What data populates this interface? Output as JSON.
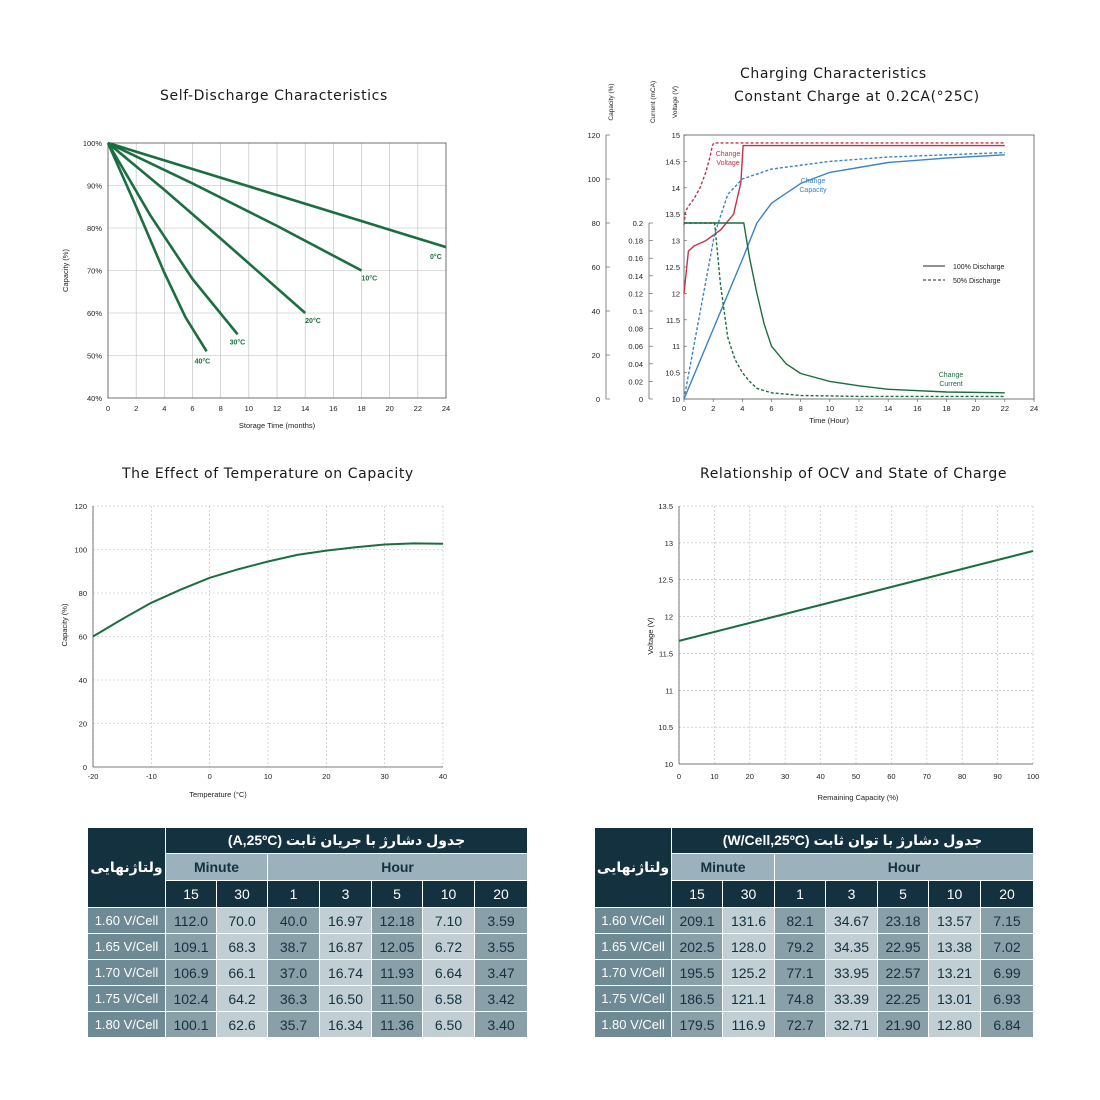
{
  "colors": {
    "green": "#1a6e3f",
    "red": "#c2334b",
    "blue": "#3a83c4",
    "navy": "#14313f",
    "grid": "#bbbbbb"
  },
  "chart_data": [
    {
      "type": "line",
      "title": "Self-Discharge Characteristics",
      "xlabel": "Storage Time (months)",
      "ylabel": "Capacity (%)",
      "xlim": [
        0,
        24
      ],
      "ylim": [
        40,
        100
      ],
      "x_ticks": [
        0,
        2,
        4,
        6,
        8,
        10,
        12,
        14,
        16,
        18,
        20,
        22,
        24
      ],
      "y_ticks": [
        "40%",
        "50%",
        "60%",
        "70%",
        "80%",
        "90%",
        "100%"
      ],
      "grid": true,
      "series": [
        {
          "name": "0°C",
          "x": [
            0,
            24
          ],
          "y": [
            100,
            75.5
          ]
        },
        {
          "name": "10°C",
          "x": [
            0,
            6,
            12,
            18
          ],
          "y": [
            100,
            90.5,
            80.5,
            70
          ]
        },
        {
          "name": "20°C",
          "x": [
            0,
            4,
            8,
            14
          ],
          "y": [
            100,
            89,
            77.5,
            60
          ]
        },
        {
          "name": "30°C",
          "x": [
            0,
            3,
            6,
            9.2
          ],
          "y": [
            100,
            83,
            68,
            55
          ]
        },
        {
          "name": "40°C",
          "x": [
            0,
            2,
            4,
            5.5,
            7
          ],
          "y": [
            100,
            85,
            69.5,
            59,
            51
          ]
        }
      ]
    },
    {
      "type": "line",
      "title": "Charging Characteristics",
      "subtitle": "Constant Charge at 0.2CA(°25C)",
      "xlabel": "Time (Hour)",
      "axis_labels": [
        "Capacity (%)",
        "Current (mCA)",
        "Voltage (V)"
      ],
      "xlim": [
        0,
        24
      ],
      "x_ticks": [
        0,
        2,
        4,
        6,
        8,
        10,
        12,
        14,
        16,
        18,
        20,
        22,
        24
      ],
      "capacity_ticks": [
        0,
        20,
        40,
        60,
        80,
        100,
        120
      ],
      "current_ticks": [
        0,
        0.02,
        0.04,
        0.06,
        0.08,
        0.1,
        0.12,
        0.14,
        0.16,
        0.18,
        0.2
      ],
      "voltage_ticks": [
        10,
        10.5,
        11,
        11.5,
        12,
        12.5,
        13,
        13.5,
        14,
        14.5,
        15
      ],
      "legend": [
        "100% Discharge",
        "50% Discharge"
      ],
      "legend_position": "right",
      "annotations": [
        "Change\nVoltage",
        "Change\nCapacity",
        "Change\nCurrent"
      ],
      "series": [
        {
          "x": [
            0,
            0.3,
            0.7,
            1.5,
            2.5,
            3.4,
            3.9,
            4.05,
            6,
            10,
            22
          ],
          "y": [
            12,
            12.8,
            12.9,
            13.0,
            13.2,
            13.5,
            14.1,
            14.8,
            14.8,
            14.8,
            14.8
          ],
          "unit": "V",
          "style": "solid",
          "color": "red"
        },
        {
          "x": [
            0,
            0.1,
            0.3,
            0.7,
            1.1,
            1.5,
            1.75,
            1.95,
            2.05,
            4,
            10,
            22
          ],
          "y": [
            13.3,
            13.55,
            13.65,
            13.8,
            14.0,
            14.3,
            14.55,
            14.8,
            14.85,
            14.85,
            14.85,
            14.85
          ],
          "unit": "V",
          "style": "dashed",
          "color": "red"
        },
        {
          "x": [
            0,
            4.1,
            5,
            6,
            8,
            10,
            14,
            18,
            22
          ],
          "y": [
            0,
            65,
            80,
            89,
            98,
            103,
            107.5,
            109.5,
            111
          ],
          "unit": "%",
          "style": "solid",
          "color": "blue"
        },
        {
          "x": [
            0,
            2.1,
            3,
            4,
            6,
            10,
            14,
            18,
            22
          ],
          "y": [
            0,
            75,
            93,
            100,
            104.5,
            108,
            110,
            111,
            112
          ],
          "unit": "%",
          "style": "dashed",
          "color": "blue"
        },
        {
          "x": [
            0,
            4.1,
            4.5,
            5,
            5.5,
            6,
            7,
            8,
            10,
            12,
            14,
            18,
            22
          ],
          "y": [
            0.2,
            0.2,
            0.16,
            0.12,
            0.085,
            0.06,
            0.04,
            0.029,
            0.02,
            0.015,
            0.011,
            0.008,
            0.007
          ],
          "unit": "CA",
          "style": "solid",
          "color": "green"
        },
        {
          "x": [
            0,
            2.1,
            2.5,
            3,
            3.5,
            4,
            4.5,
            5,
            6,
            8,
            12,
            16,
            22
          ],
          "y": [
            0.2,
            0.2,
            0.13,
            0.07,
            0.045,
            0.03,
            0.02,
            0.012,
            0.007,
            0.004,
            0.003,
            0.003,
            0.003
          ],
          "unit": "CA",
          "style": "dashed",
          "color": "green"
        }
      ]
    },
    {
      "type": "line",
      "title": "The Effect of Temperature on Capacity",
      "xlabel": "Temperature (°C)",
      "ylabel": "Capacity (%)",
      "xlim": [
        -20,
        40
      ],
      "ylim": [
        0,
        120
      ],
      "x_ticks": [
        -20,
        -10,
        0,
        10,
        20,
        30,
        40
      ],
      "y_ticks": [
        0,
        20,
        40,
        60,
        80,
        100,
        120
      ],
      "grid": true,
      "series": [
        {
          "x": [
            -20,
            -15,
            -10,
            -5,
            0,
            5,
            10,
            15,
            20,
            25,
            30,
            35,
            40
          ],
          "y": [
            60,
            68,
            75.5,
            81.5,
            87,
            91,
            94.5,
            97.5,
            99.5,
            101,
            102.3,
            102.8,
            102.6
          ]
        }
      ]
    },
    {
      "type": "line",
      "title": "Relationship of OCV and State of Charge",
      "xlabel": "Remaining Capacity (%)",
      "ylabel": "Voltage (V)",
      "xlim": [
        0,
        100
      ],
      "ylim": [
        10,
        13.5
      ],
      "x_ticks": [
        0,
        10,
        20,
        30,
        40,
        50,
        60,
        70,
        80,
        90,
        100
      ],
      "y_ticks": [
        10,
        10.5,
        11,
        11.5,
        12,
        12.5,
        13,
        13.5
      ],
      "grid": true,
      "series": [
        {
          "x": [
            0,
            100
          ],
          "y": [
            11.67,
            12.89
          ]
        }
      ]
    },
    {
      "type": "table",
      "title": "جدول دشارژ با جریان ثابت (A,25ºC)",
      "corner": "ولتاژنهایی",
      "groups": [
        {
          "label": "Minute",
          "span": 2
        },
        {
          "label": "Hour",
          "span": 5
        }
      ],
      "columns": [
        "15",
        "30",
        "1",
        "3",
        "5",
        "10",
        "20"
      ],
      "rows": [
        {
          "label": "1.60 V/Cell",
          "values": [
            "112.0",
            "70.0",
            "40.0",
            "16.97",
            "12.18",
            "7.10",
            "3.59"
          ]
        },
        {
          "label": "1.65 V/Cell",
          "values": [
            "109.1",
            "68.3",
            "38.7",
            "16.87",
            "12.05",
            "6.72",
            "3.55"
          ]
        },
        {
          "label": "1.70 V/Cell",
          "values": [
            "106.9",
            "66.1",
            "37.0",
            "16.74",
            "11.93",
            "6.64",
            "3.47"
          ]
        },
        {
          "label": "1.75 V/Cell",
          "values": [
            "102.4",
            "64.2",
            "36.3",
            "16.50",
            "11.50",
            "6.58",
            "3.42"
          ]
        },
        {
          "label": "1.80 V/Cell",
          "values": [
            "100.1",
            "62.6",
            "35.7",
            "16.34",
            "11.36",
            "6.50",
            "3.40"
          ]
        }
      ]
    },
    {
      "type": "table",
      "title": "جدول دشارژ با توان ثابت (W/Cell,25ºC)",
      "corner": "ولتاژنهایی",
      "groups": [
        {
          "label": "Minute",
          "span": 2
        },
        {
          "label": "Hour",
          "span": 5
        }
      ],
      "columns": [
        "15",
        "30",
        "1",
        "3",
        "5",
        "10",
        "20"
      ],
      "rows": [
        {
          "label": "1.60 V/Cell",
          "values": [
            "209.1",
            "131.6",
            "82.1",
            "34.67",
            "23.18",
            "13.57",
            "7.15"
          ]
        },
        {
          "label": "1.65 V/Cell",
          "values": [
            "202.5",
            "128.0",
            "79.2",
            "34.35",
            "22.95",
            "13.38",
            "7.02"
          ]
        },
        {
          "label": "1.70 V/Cell",
          "values": [
            "195.5",
            "125.2",
            "77.1",
            "33.95",
            "22.57",
            "13.21",
            "6.99"
          ]
        },
        {
          "label": "1.75 V/Cell",
          "values": [
            "186.5",
            "121.1",
            "74.8",
            "33.39",
            "22.25",
            "13.01",
            "6.93"
          ]
        },
        {
          "label": "1.80 V/Cell",
          "values": [
            "179.5",
            "116.9",
            "72.7",
            "32.71",
            "21.90",
            "12.80",
            "6.84"
          ]
        }
      ]
    }
  ]
}
